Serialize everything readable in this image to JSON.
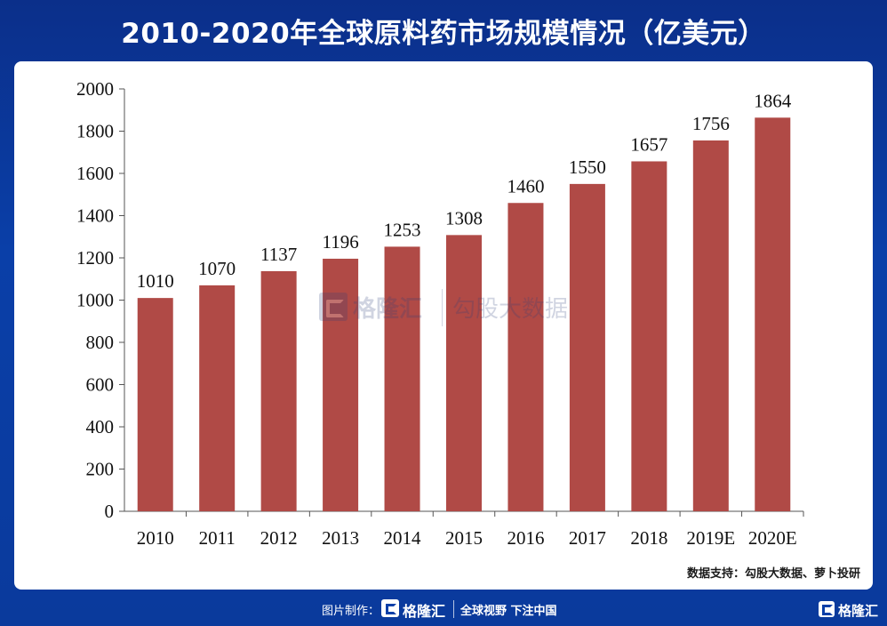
{
  "title": "2010-2020年全球原料药市场规模情况（亿美元）",
  "source": "数据支持：勾股大数据、萝卜投研",
  "watermark": {
    "brand": "格隆汇",
    "secondary": "勾股大数据"
  },
  "footer": {
    "made_by": "图片制作：",
    "brand": "格隆汇",
    "slogan": "全球视野 下注中国"
  },
  "corner_brand": "格隆汇",
  "colors": {
    "bar": "#b04a46",
    "background": "#0a3fa8",
    "panel": "#ffffff",
    "axis": "#555555"
  },
  "chart_data": {
    "type": "bar",
    "categories": [
      "2010",
      "2011",
      "2012",
      "2013",
      "2014",
      "2015",
      "2016",
      "2017",
      "2018",
      "2019E",
      "2020E"
    ],
    "values": [
      1010,
      1070,
      1137,
      1196,
      1253,
      1308,
      1460,
      1550,
      1657,
      1756,
      1864
    ],
    "title": "",
    "xlabel": "",
    "ylabel": "",
    "ylim": [
      0,
      2000
    ],
    "yticks": [
      0,
      200,
      400,
      600,
      800,
      1000,
      1200,
      1400,
      1600,
      1800,
      2000
    ],
    "data_labels": true,
    "grid": false,
    "legend": "none"
  }
}
